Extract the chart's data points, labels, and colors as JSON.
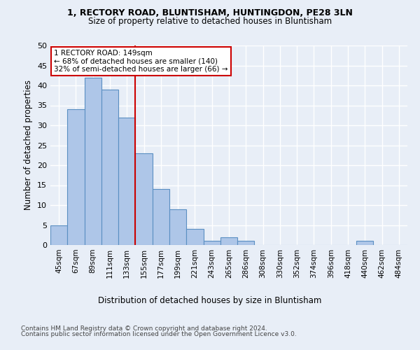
{
  "title_line1": "1, RECTORY ROAD, BLUNTISHAM, HUNTINGDON, PE28 3LN",
  "title_line2": "Size of property relative to detached houses in Bluntisham",
  "xlabel": "Distribution of detached houses by size in Bluntisham",
  "ylabel": "Number of detached properties",
  "bar_values": [
    5,
    34,
    42,
    39,
    32,
    23,
    14,
    9,
    4,
    1,
    2,
    1,
    0,
    0,
    0,
    0,
    0,
    0,
    1,
    0,
    0
  ],
  "x_labels": [
    "45sqm",
    "67sqm",
    "89sqm",
    "111sqm",
    "133sqm",
    "155sqm",
    "177sqm",
    "199sqm",
    "221sqm",
    "243sqm",
    "265sqm",
    "286sqm",
    "308sqm",
    "330sqm",
    "352sqm",
    "374sqm",
    "396sqm",
    "418sqm",
    "440sqm",
    "462sqm",
    "484sqm"
  ],
  "bar_color": "#aec6e8",
  "bar_edge_color": "#5a8fc2",
  "bg_color": "#e8eef7",
  "grid_color": "#ffffff",
  "annotation_text": "1 RECTORY ROAD: 149sqm\n← 68% of detached houses are smaller (140)\n32% of semi-detached houses are larger (66) →",
  "annotation_box_color": "#ffffff",
  "annotation_box_edge": "#cc0000",
  "vline_color": "#cc0000",
  "vline_x": 4.5,
  "ylim": [
    0,
    50
  ],
  "yticks": [
    0,
    5,
    10,
    15,
    20,
    25,
    30,
    35,
    40,
    45,
    50
  ],
  "footer_line1": "Contains HM Land Registry data © Crown copyright and database right 2024.",
  "footer_line2": "Contains public sector information licensed under the Open Government Licence v3.0."
}
